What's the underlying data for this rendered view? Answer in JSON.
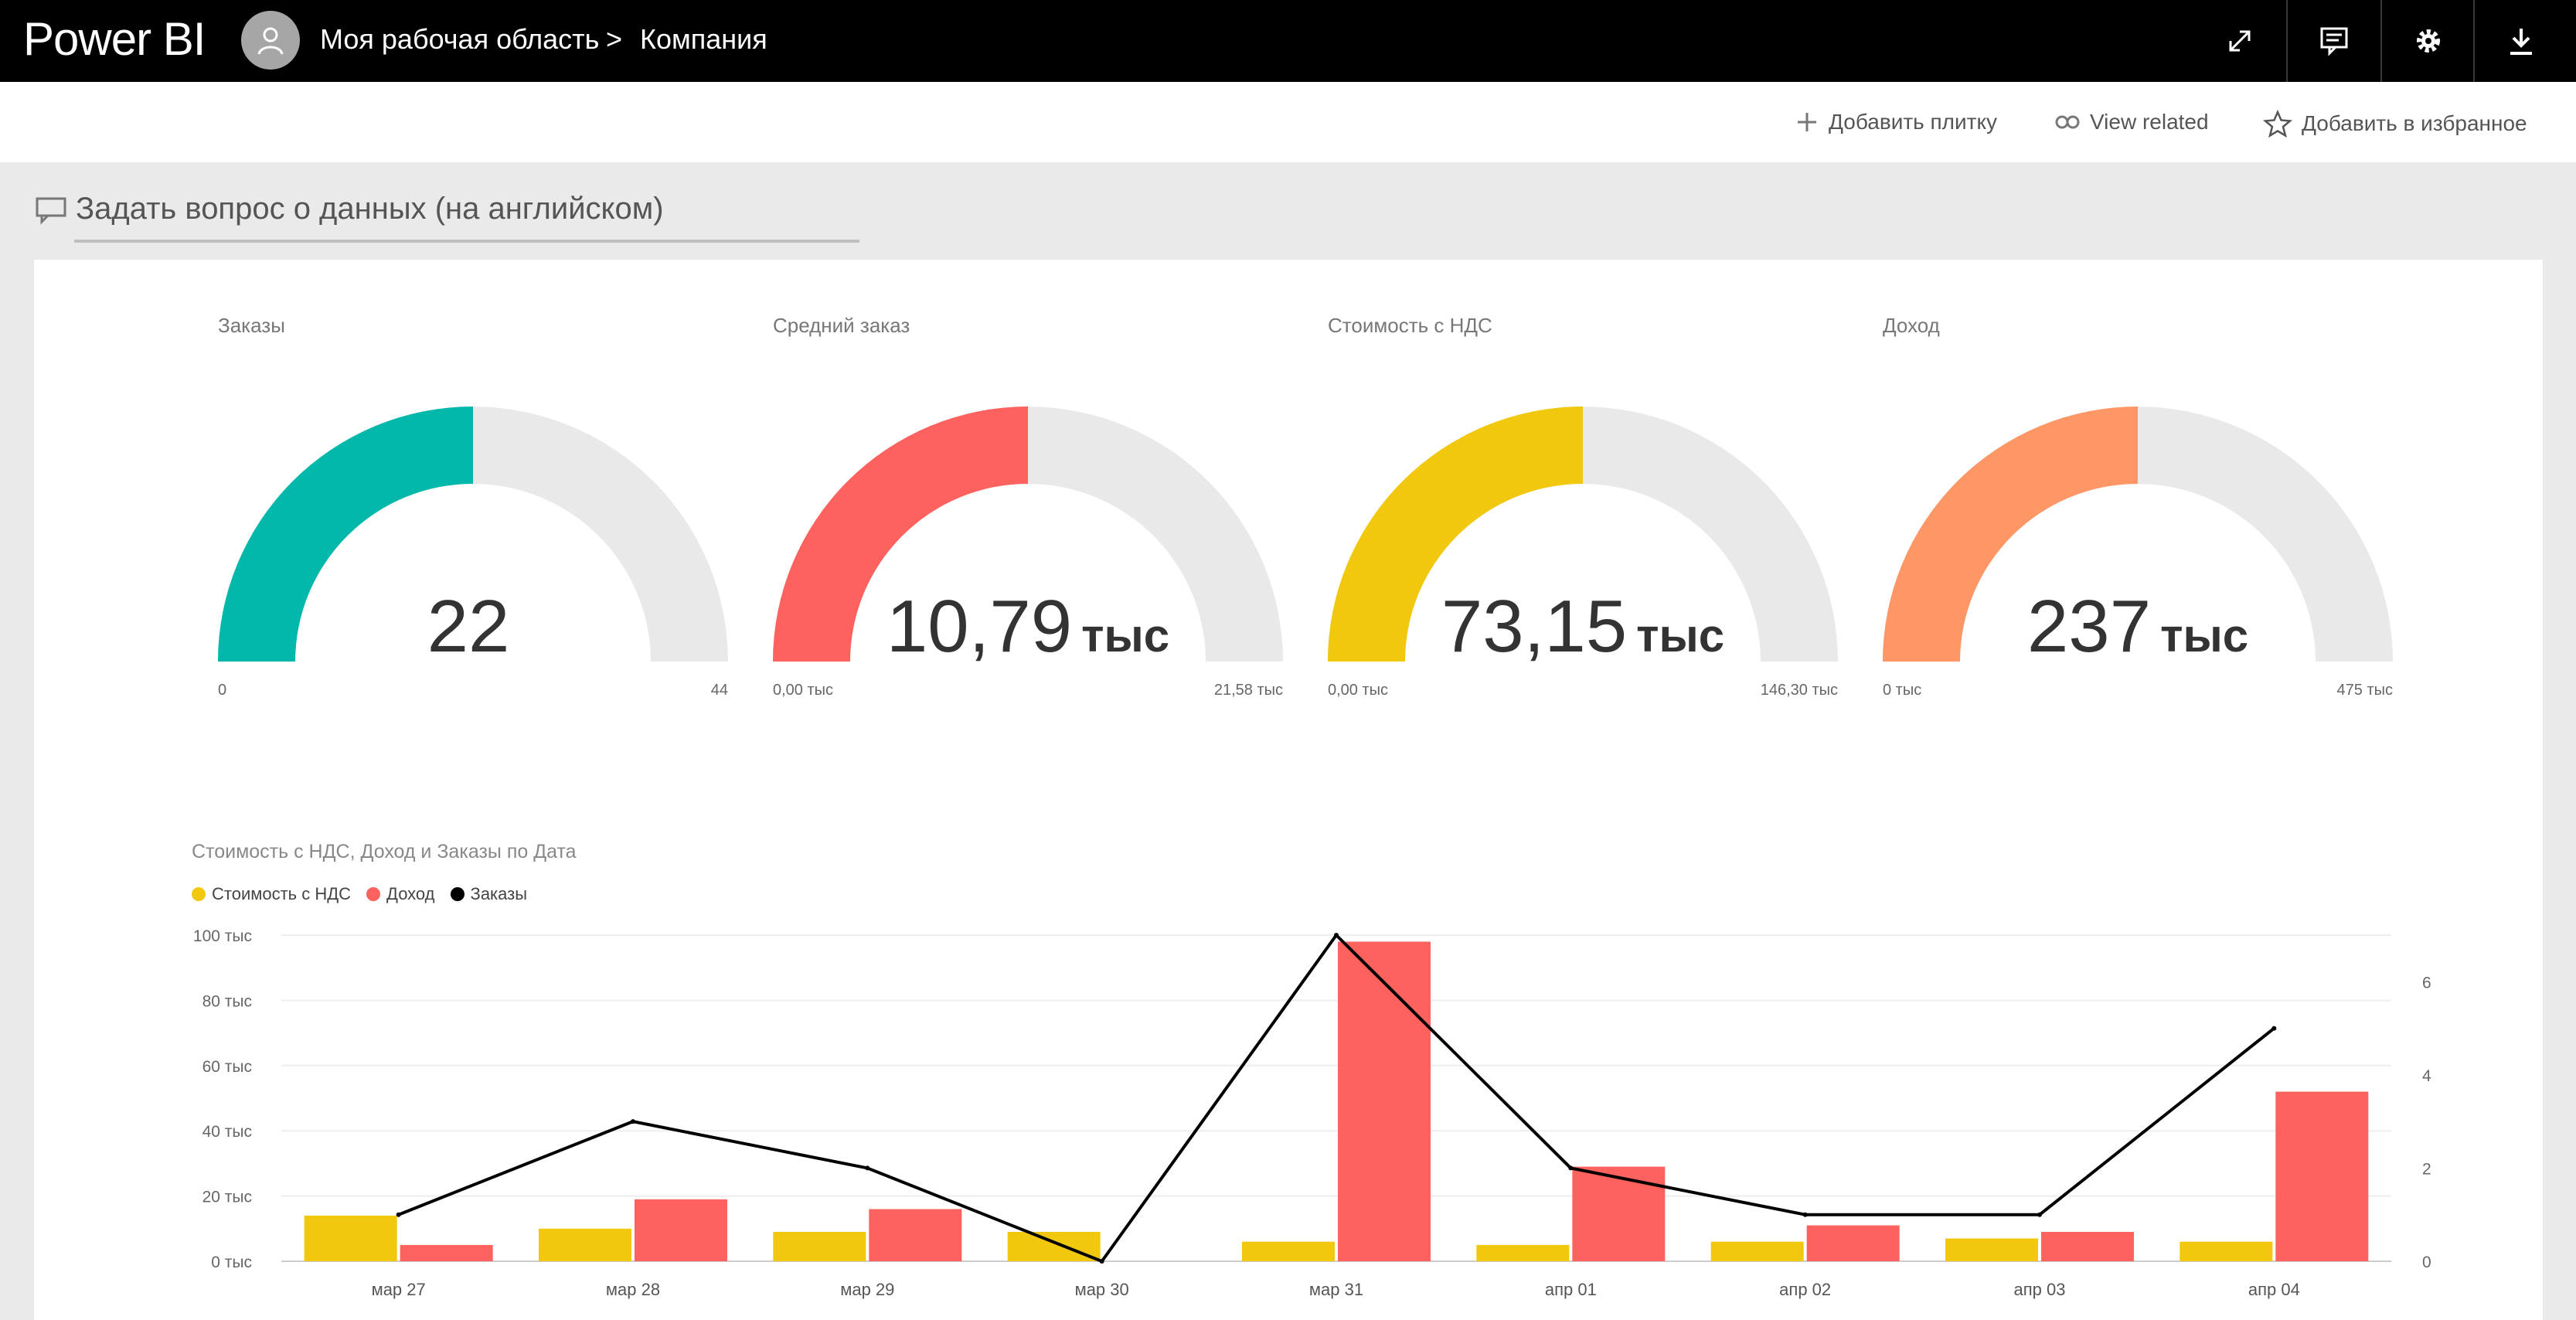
{
  "topbar": {
    "brand": "Power BI",
    "workspace": "Моя рабочая область",
    "separator": ">",
    "current": "Компания"
  },
  "actions": {
    "add_tile": "Добавить плитку",
    "view_related": "View related",
    "add_favorite": "Добавить в избранное"
  },
  "qa": {
    "placeholder": "Задать вопрос о данных (на английском)"
  },
  "gauges": [
    {
      "title": "Заказы",
      "value": "22",
      "unit": "",
      "min": "0",
      "max": "44",
      "fraction": 0.5,
      "color": "#01b8aa"
    },
    {
      "title": "Средний заказ",
      "value": "10,79",
      "unit": "тыс",
      "min": "0,00 тыс",
      "max": "21,58 тыс",
      "fraction": 0.5,
      "color": "#fd625e"
    },
    {
      "title": "Стоимость с НДС",
      "value": "73,15",
      "unit": "тыс",
      "min": "0,00 тыс",
      "max": "146,30 тыс",
      "fraction": 0.5,
      "color": "#f2c80f"
    },
    {
      "title": "Доход",
      "value": "237",
      "unit": "тыс",
      "min": "0 тыс",
      "max": "475 тыс",
      "fraction": 0.5,
      "color": "#fe9666"
    }
  ],
  "gauge_track_color": "#e9e9e9",
  "chart_data": {
    "type": "bar",
    "title": "Стоимость с НДС, Доход и Заказы по Дата",
    "categories": [
      "мар 27",
      "мар 28",
      "мар 29",
      "мар 30",
      "мар 31",
      "апр 01",
      "апр 02",
      "апр 03",
      "апр 04"
    ],
    "series": [
      {
        "name": "Стоимость с НДС",
        "kind": "bar",
        "axis": "left",
        "color": "#f2c80f",
        "values": [
          14,
          10,
          9,
          9,
          6,
          5,
          6,
          7,
          6
        ]
      },
      {
        "name": "Доход",
        "kind": "bar",
        "axis": "left",
        "color": "#fd625e",
        "values": [
          5,
          19,
          16,
          0,
          98,
          29,
          11,
          9,
          52
        ]
      },
      {
        "name": "Заказы",
        "kind": "line",
        "axis": "right",
        "color": "#000000",
        "values": [
          1,
          3,
          2,
          0,
          7,
          2,
          1,
          1,
          5
        ]
      }
    ],
    "left_ticks": [
      "0 тыс",
      "20 тыс",
      "40 тыс",
      "60 тыс",
      "80 тыс",
      "100 тыс"
    ],
    "ylim": [
      0,
      100
    ],
    "right_ticks": [
      "0",
      "2",
      "4",
      "6"
    ],
    "y2lim": [
      0,
      7
    ],
    "grid": true,
    "legend_position": "top-left"
  }
}
